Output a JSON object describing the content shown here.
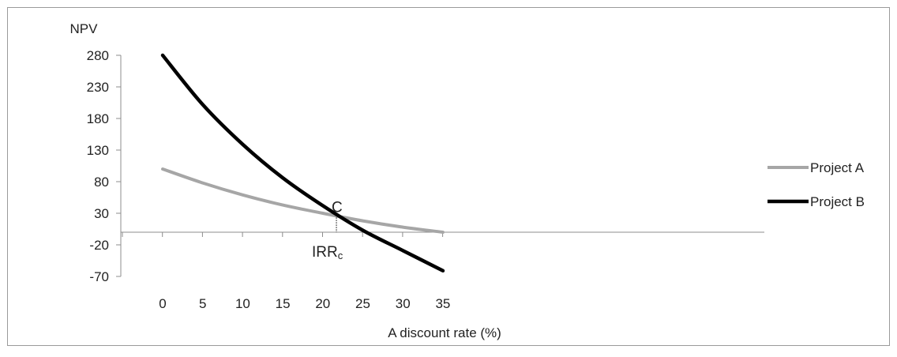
{
  "chart_data": {
    "type": "line",
    "title": "",
    "ylabel": "NPV",
    "xlabel": "A discount rate (%)",
    "x": [
      0,
      5,
      10,
      15,
      20,
      25,
      30,
      35
    ],
    "x_ticks": [
      "0",
      "5",
      "10",
      "15",
      "20",
      "25",
      "30",
      "35"
    ],
    "y_ticks": [
      "280",
      "230",
      "180",
      "130",
      "80",
      "30",
      "-20",
      "-70"
    ],
    "y_tick_values": [
      280,
      230,
      180,
      130,
      80,
      30,
      -20,
      -70
    ],
    "series": [
      {
        "name": "Project A",
        "color": "#a6a6a6",
        "values": [
          100,
          78,
          59,
          43,
          30,
          18,
          8,
          0
        ]
      },
      {
        "name": "Project B",
        "color": "#000000",
        "values": [
          280,
          202,
          139,
          86,
          42,
          3,
          -29,
          -61
        ]
      }
    ],
    "annotations": {
      "crossover_label": "C",
      "crossover_x": 21.7,
      "crossover_y": 27,
      "irr_label": "IRR",
      "irr_subscript": "c"
    },
    "legend": {
      "placement": "right"
    },
    "grid": false
  }
}
